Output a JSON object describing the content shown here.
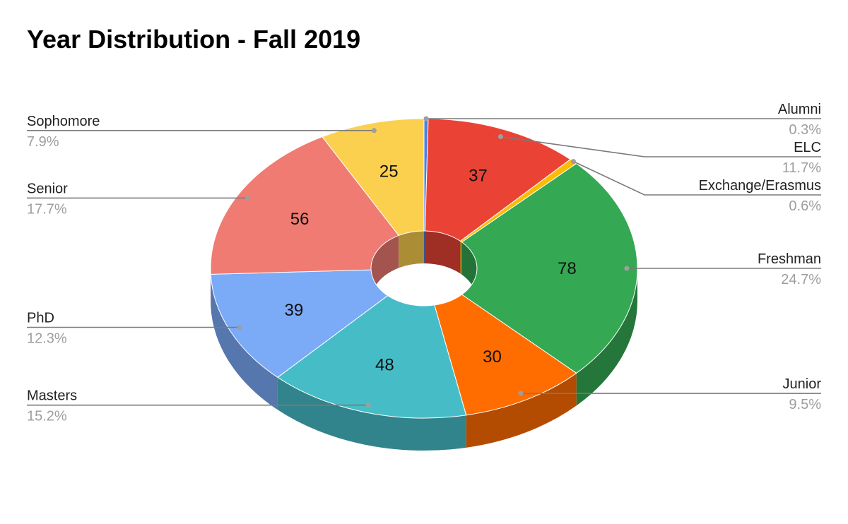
{
  "chart_data": {
    "type": "pie",
    "variant": "3d-donut",
    "title": "Year Distribution - Fall 2019",
    "legend": "labels-outside",
    "slices": [
      {
        "name": "Alumni",
        "value": 1,
        "percent": "0.3%",
        "color": "#4e7fdc"
      },
      {
        "name": "ELC",
        "value": 37,
        "percent": "11.7%",
        "color": "#ea4335"
      },
      {
        "name": "Exchange/Erasmus",
        "value": 2,
        "percent": "0.6%",
        "color": "#fbbc04"
      },
      {
        "name": "Freshman",
        "value": 78,
        "percent": "24.7%",
        "color": "#34a853"
      },
      {
        "name": "Junior",
        "value": 30,
        "percent": "9.5%",
        "color": "#ff6d01"
      },
      {
        "name": "Masters",
        "value": 48,
        "percent": "15.2%",
        "color": "#46bdc6"
      },
      {
        "name": "PhD",
        "value": 39,
        "percent": "12.3%",
        "color": "#7baaf7"
      },
      {
        "name": "Senior",
        "value": 56,
        "percent": "17.7%",
        "color": "#f07b72"
      },
      {
        "name": "Sophomore",
        "value": 25,
        "percent": "7.9%",
        "color": "#fcd04f"
      }
    ]
  }
}
